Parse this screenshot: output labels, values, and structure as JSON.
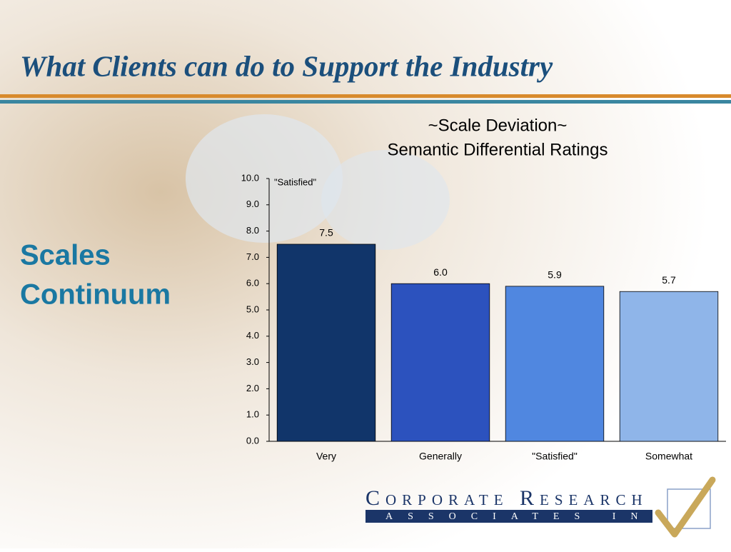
{
  "slide_title": "What Clients can do to Support the Industry",
  "side_heading": [
    "Scales",
    "Continuum"
  ],
  "chart_data": {
    "type": "bar",
    "title": [
      "~Scale Deviation~",
      "Semantic Differential Ratings"
    ],
    "annotation": "\"Satisfied\"",
    "categories": [
      "Very",
      "Generally",
      "\"Satisfied\"",
      "Somewhat"
    ],
    "values": [
      7.5,
      6.0,
      5.9,
      5.7
    ],
    "value_labels": [
      "7.5",
      "6.0",
      "5.9",
      "5.7"
    ],
    "colors": [
      "#11356a",
      "#2c52be",
      "#5087e0",
      "#8fb5e9"
    ],
    "ylim": [
      0,
      10
    ],
    "yticks": [
      {
        "value": 0,
        "label": "0.0"
      },
      {
        "value": 1,
        "label": "1.0"
      },
      {
        "value": 2,
        "label": "2.0"
      },
      {
        "value": 3,
        "label": "3.0"
      },
      {
        "value": 4,
        "label": "4.0"
      },
      {
        "value": 5,
        "label": "5.0"
      },
      {
        "value": 6,
        "label": "6.0"
      },
      {
        "value": 7,
        "label": "7.0"
      },
      {
        "value": 8,
        "label": "8.0"
      },
      {
        "value": 9,
        "label": "9.0"
      },
      {
        "value": 10,
        "label": "10.0"
      }
    ],
    "grid": false
  },
  "logo": {
    "name": "Corporate Research",
    "sub": "ASSOCIATES INC"
  }
}
